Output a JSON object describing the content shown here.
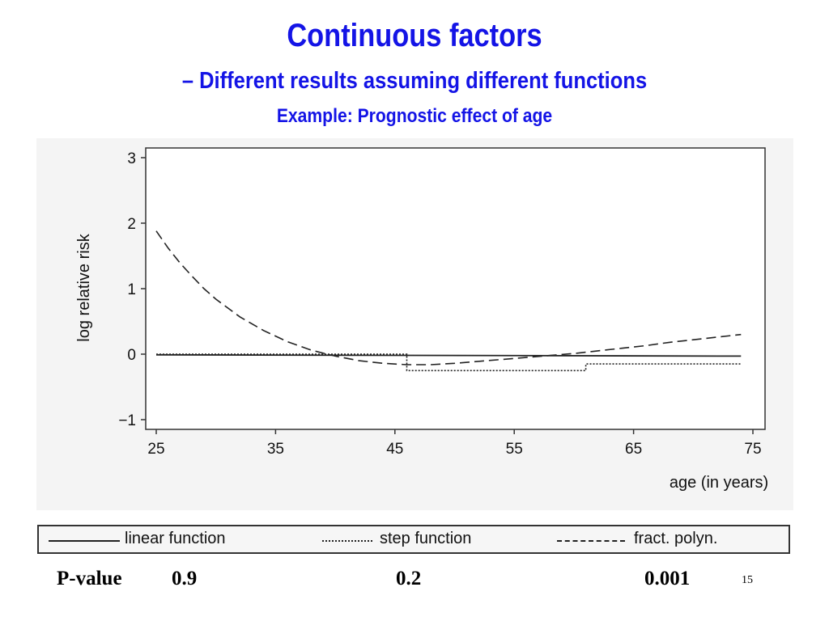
{
  "slide": {
    "title": "Continuous factors",
    "subtitle": "– Different results assuming different functions",
    "example": "Example: Prognostic effect of age",
    "page_number": "15",
    "title_color": "#1414e6"
  },
  "pvalues": {
    "label": "P-value",
    "linear": "0.9",
    "step": "0.2",
    "fp": "0.001"
  },
  "legend": {
    "linear": "linear function",
    "step": "step function",
    "fp": "fract. polyn."
  },
  "chart_data": {
    "type": "line",
    "xlabel": "age  (in years)",
    "ylabel": "log relative risk",
    "xlim": [
      25,
      75
    ],
    "ylim": [
      -1,
      3
    ],
    "xticks": [
      25,
      35,
      45,
      55,
      65,
      75
    ],
    "yticks": [
      -1,
      0,
      1,
      2,
      3
    ],
    "ytick_labels": [
      "−1",
      "0",
      "1",
      "2",
      "3"
    ],
    "grid": false,
    "series": [
      {
        "name": "linear function",
        "style": "solid",
        "x": [
          25,
          74
        ],
        "y": [
          -0.01,
          -0.03
        ]
      },
      {
        "name": "step function",
        "style": "dotted",
        "x": [
          25,
          46,
          46,
          61,
          61,
          74
        ],
        "y": [
          0,
          0,
          -0.25,
          -0.25,
          -0.15,
          -0.15
        ]
      },
      {
        "name": "fract. polyn.",
        "style": "dashed",
        "x": [
          25,
          26,
          27,
          28,
          29,
          30,
          32,
          34,
          36,
          38,
          40,
          42,
          44,
          46,
          48,
          50,
          52,
          54,
          56,
          58,
          60,
          62,
          64,
          66,
          68,
          70,
          72,
          74
        ],
        "y": [
          1.88,
          1.62,
          1.39,
          1.19,
          1.0,
          0.84,
          0.57,
          0.36,
          0.19,
          0.06,
          -0.03,
          -0.1,
          -0.14,
          -0.16,
          -0.16,
          -0.14,
          -0.11,
          -0.08,
          -0.05,
          -0.02,
          0.01,
          0.05,
          0.09,
          0.13,
          0.18,
          0.22,
          0.26,
          0.3
        ]
      }
    ]
  }
}
